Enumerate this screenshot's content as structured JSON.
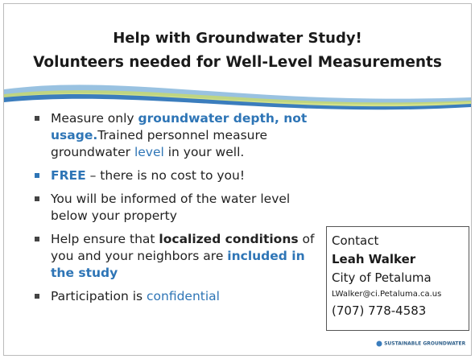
{
  "title": {
    "lines": [
      "Help with Groundwater Study!",
      "Volunteers needed for Well-Level Measurements"
    ]
  },
  "bullets": [
    {
      "marker_color": "#444444",
      "runs": [
        {
          "text": "Measure only ",
          "color": "#222222",
          "bold": false
        },
        {
          "text": "groundwater depth, not usage.",
          "color": "#2e75b6",
          "bold": true
        },
        {
          "text": "Trained personnel measure groundwater ",
          "color": "#222222",
          "bold": false
        },
        {
          "text": "level",
          "color": "#2e75b6",
          "bold": false
        },
        {
          "text": " in your well.",
          "color": "#222222",
          "bold": false
        }
      ]
    },
    {
      "marker_color": "#2e75b6",
      "runs": [
        {
          "text": "FREE",
          "color": "#2e75b6",
          "bold": true
        },
        {
          "text": " – there is no cost to you!",
          "color": "#222222",
          "bold": false
        }
      ]
    },
    {
      "marker_color": "#444444",
      "runs": [
        {
          "text": "You will be informed of the water level below your property",
          "color": "#222222",
          "bold": false
        }
      ]
    },
    {
      "marker_color": "#444444",
      "runs": [
        {
          "text": "Help ensure that ",
          "color": "#222222",
          "bold": false
        },
        {
          "text": "localized conditions",
          "color": "#222222",
          "bold": true
        },
        {
          "text": " of you and your neighbors are ",
          "color": "#222222",
          "bold": false
        },
        {
          "text": "included in the study",
          "color": "#2e75b6",
          "bold": true
        }
      ]
    },
    {
      "marker_color": "#444444",
      "runs": [
        {
          "text": "Participation is ",
          "color": "#222222",
          "bold": false
        },
        {
          "text": "confidential",
          "color": "#2e75b6",
          "bold": false
        }
      ]
    }
  ],
  "contact": {
    "heading": "Contact",
    "name": "Leah Walker",
    "organization": "City of Petaluma",
    "email": "LWalker@ci.Petaluma.ca.us",
    "phone": "(707) 778-4583"
  },
  "footer": {
    "logo_text": "SUSTAINABLE GROUNDWATER"
  }
}
